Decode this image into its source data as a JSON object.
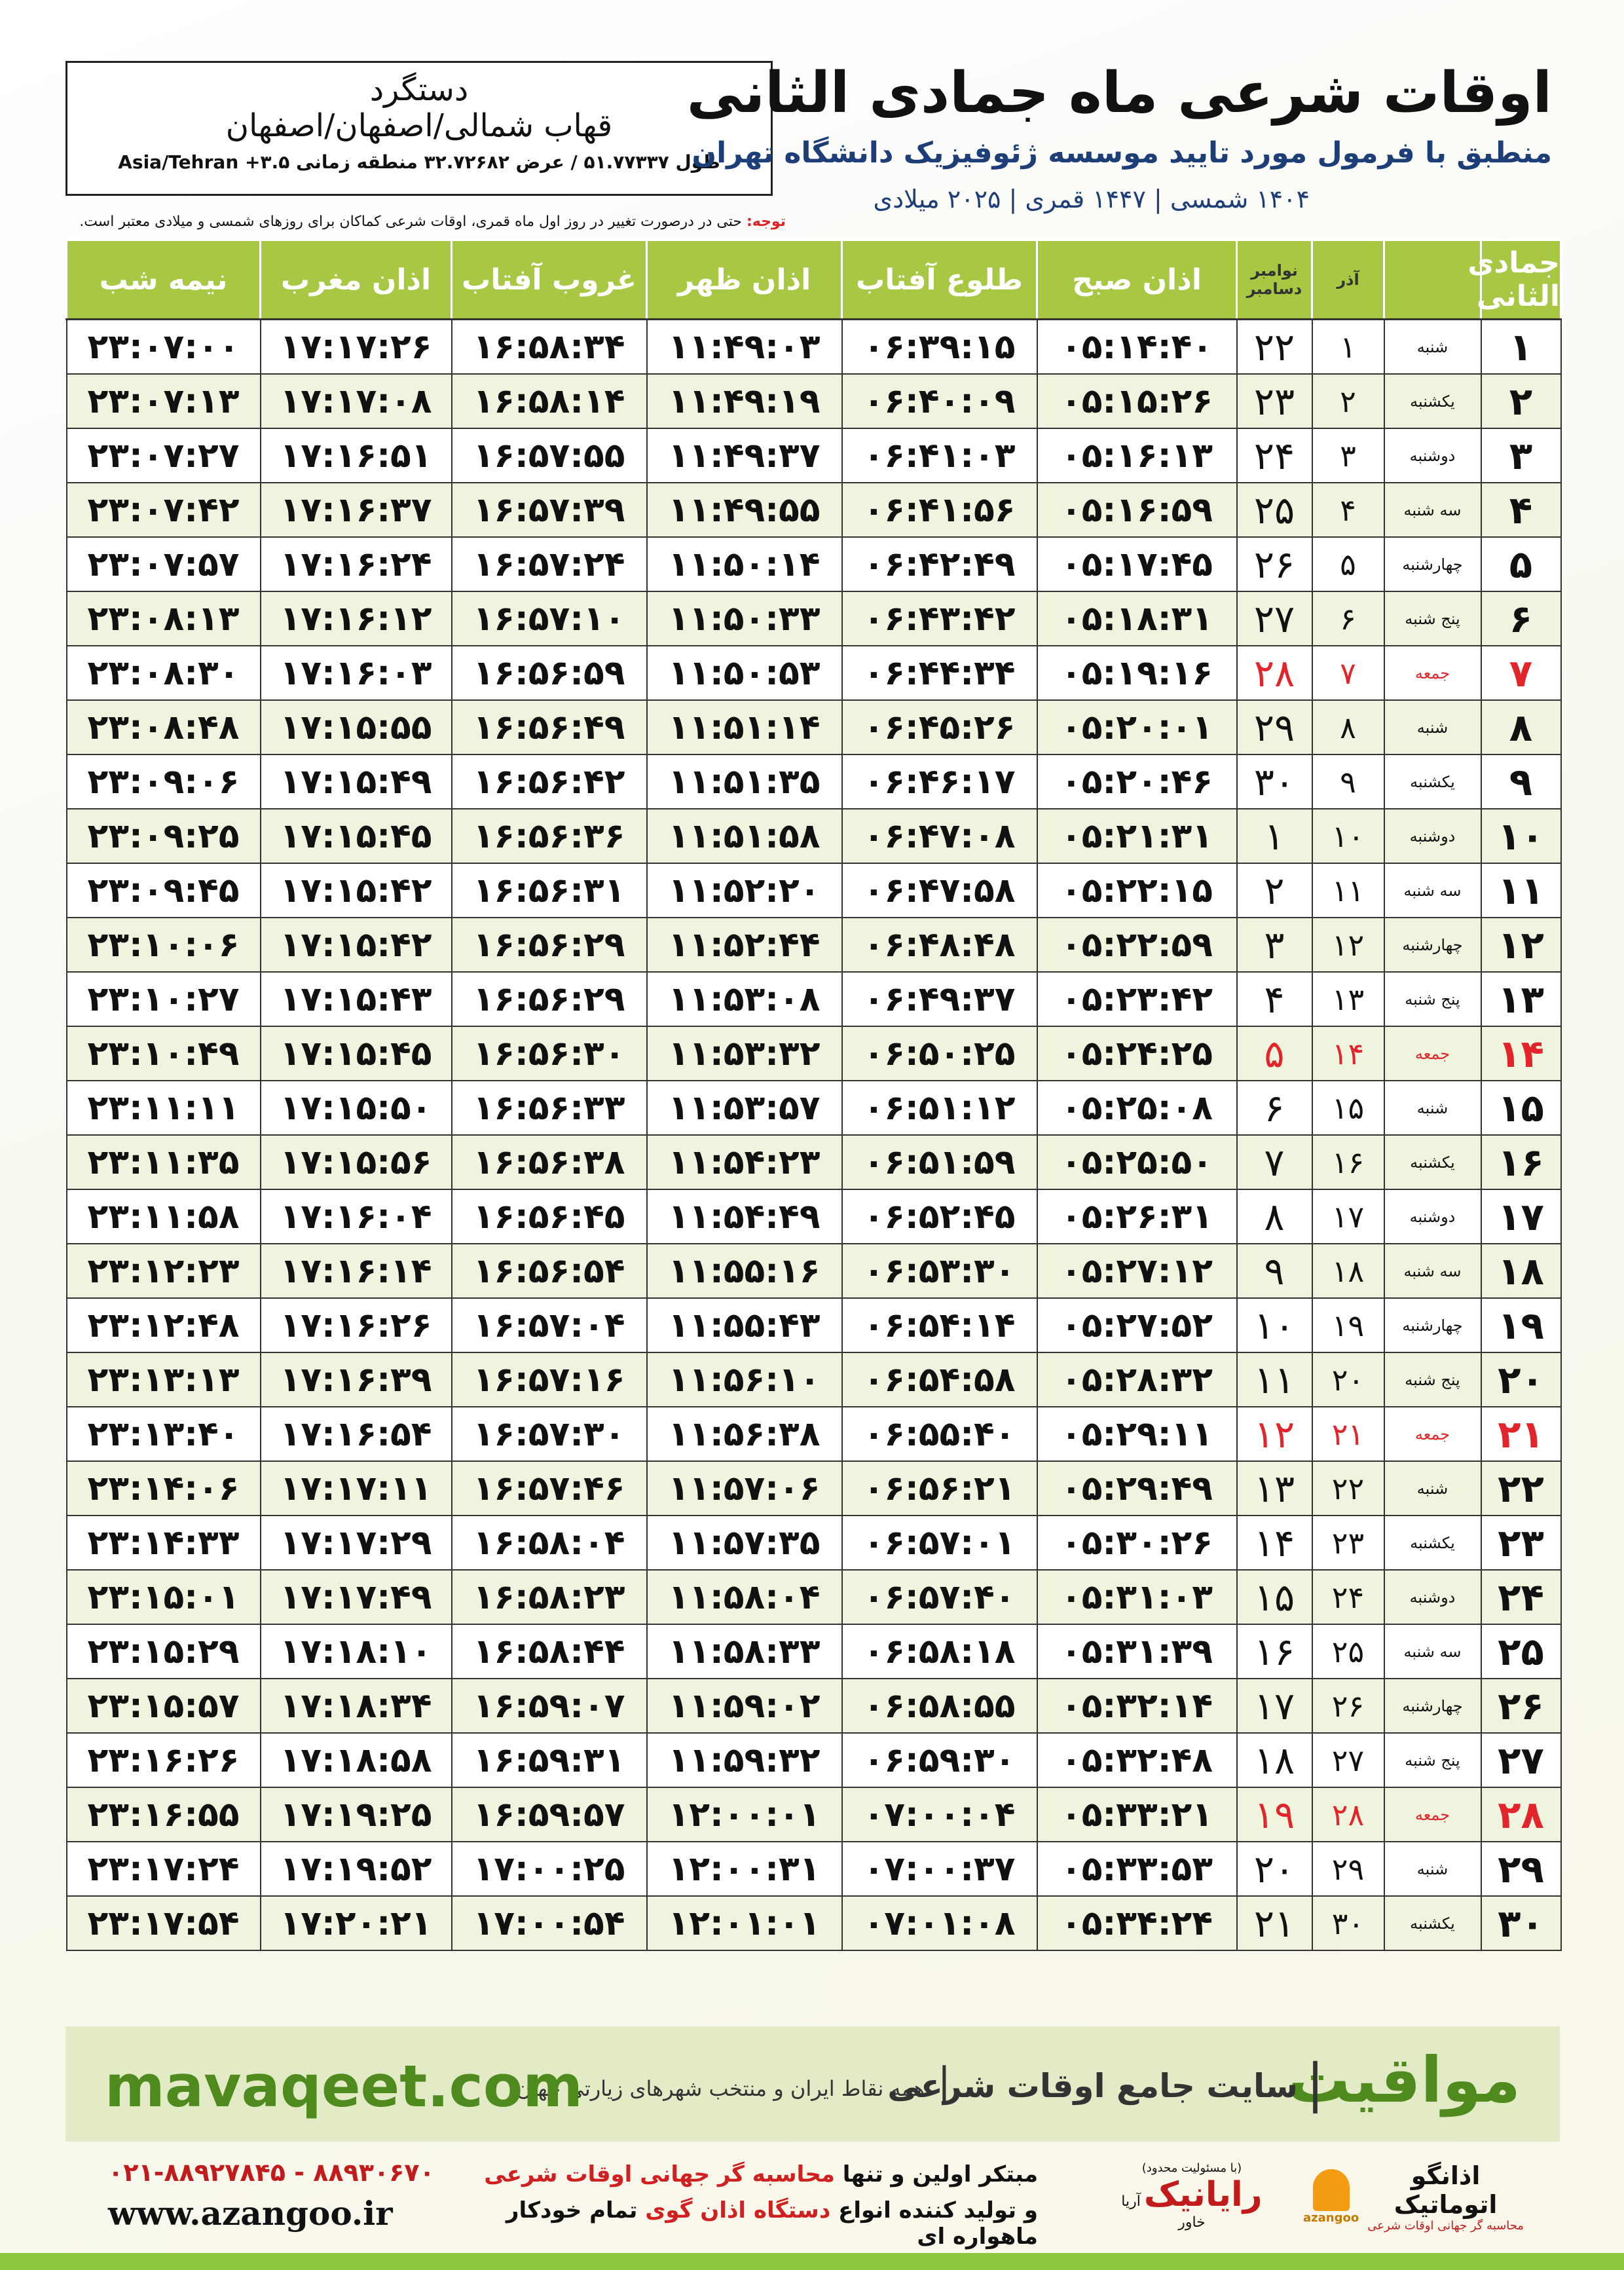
{
  "header": {
    "title": "اوقات شرعی ماه جمادی الثانی",
    "subtitle": "منطبق با فرمول مورد تایید موسسه ژئوفیزیک دانشگاه تهران",
    "dates": "۱۴۰۴ شمسی | ۱۴۴۷ قمری | ۲۰۲۵ میلادی"
  },
  "location": {
    "name": "دستگرد",
    "region": "قهاب شمالی/اصفهان/اصفهان",
    "coords": "طول ۵۱.۷۷۳۳۷ / عرض ۳۲.۷۲۶۸۲ منطقه زمانی ۳.۵+ Asia/Tehran"
  },
  "note": {
    "label": "توجه:",
    "text": "حتی در درصورت تغییر در روز اول ماه قمری، اوقات شرعی کماکان برای روزهای شمسی و میلادی معتبر است."
  },
  "table": {
    "holiday_color": "#e3242b",
    "columns": [
      "جمادی الثانی",
      "",
      "آذر",
      [
        "نوامبر",
        "دسامبر"
      ],
      "اذان صبح",
      "طلوع آفتاب",
      "اذان ظهر",
      "غروب آفتاب",
      "اذان مغرب",
      "نیمه شب"
    ],
    "rows": [
      {
        "cells": [
          "۱",
          "شنبه",
          "۱",
          "۲۲",
          "۰۵:۱۴:۴۰",
          "۰۶:۳۹:۱۵",
          "۱۱:۴۹:۰۳",
          "۱۶:۵۸:۳۴",
          "۱۷:۱۷:۲۶",
          "۲۳:۰۷:۰۰"
        ]
      },
      {
        "cells": [
          "۲",
          "یکشنبه",
          "۲",
          "۲۳",
          "۰۵:۱۵:۲۶",
          "۰۶:۴۰:۰۹",
          "۱۱:۴۹:۱۹",
          "۱۶:۵۸:۱۴",
          "۱۷:۱۷:۰۸",
          "۲۳:۰۷:۱۳"
        ]
      },
      {
        "cells": [
          "۳",
          "دوشنبه",
          "۳",
          "۲۴",
          "۰۵:۱۶:۱۳",
          "۰۶:۴۱:۰۳",
          "۱۱:۴۹:۳۷",
          "۱۶:۵۷:۵۵",
          "۱۷:۱۶:۵۱",
          "۲۳:۰۷:۲۷"
        ]
      },
      {
        "cells": [
          "۴",
          "سه شنبه",
          "۴",
          "۲۵",
          "۰۵:۱۶:۵۹",
          "۰۶:۴۱:۵۶",
          "۱۱:۴۹:۵۵",
          "۱۶:۵۷:۳۹",
          "۱۷:۱۶:۳۷",
          "۲۳:۰۷:۴۲"
        ]
      },
      {
        "cells": [
          "۵",
          "چهارشنبه",
          "۵",
          "۲۶",
          "۰۵:۱۷:۴۵",
          "۰۶:۴۲:۴۹",
          "۱۱:۵۰:۱۴",
          "۱۶:۵۷:۲۴",
          "۱۷:۱۶:۲۴",
          "۲۳:۰۷:۵۷"
        ]
      },
      {
        "cells": [
          "۶",
          "پنج شنبه",
          "۶",
          "۲۷",
          "۰۵:۱۸:۳۱",
          "۰۶:۴۳:۴۲",
          "۱۱:۵۰:۳۳",
          "۱۶:۵۷:۱۰",
          "۱۷:۱۶:۱۲",
          "۲۳:۰۸:۱۳"
        ]
      },
      {
        "cells": [
          "۷",
          "جمعه",
          "۷",
          "۲۸",
          "۰۵:۱۹:۱۶",
          "۰۶:۴۴:۳۴",
          "۱۱:۵۰:۵۳",
          "۱۶:۵۶:۵۹",
          "۱۷:۱۶:۰۳",
          "۲۳:۰۸:۳۰"
        ],
        "holiday": true
      },
      {
        "cells": [
          "۸",
          "شنبه",
          "۸",
          "۲۹",
          "۰۵:۲۰:۰۱",
          "۰۶:۴۵:۲۶",
          "۱۱:۵۱:۱۴",
          "۱۶:۵۶:۴۹",
          "۱۷:۱۵:۵۵",
          "۲۳:۰۸:۴۸"
        ]
      },
      {
        "cells": [
          "۹",
          "یکشنبه",
          "۹",
          "۳۰",
          "۰۵:۲۰:۴۶",
          "۰۶:۴۶:۱۷",
          "۱۱:۵۱:۳۵",
          "۱۶:۵۶:۴۲",
          "۱۷:۱۵:۴۹",
          "۲۳:۰۹:۰۶"
        ]
      },
      {
        "cells": [
          "۱۰",
          "دوشنبه",
          "۱۰",
          "۱",
          "۰۵:۲۱:۳۱",
          "۰۶:۴۷:۰۸",
          "۱۱:۵۱:۵۸",
          "۱۶:۵۶:۳۶",
          "۱۷:۱۵:۴۵",
          "۲۳:۰۹:۲۵"
        ]
      },
      {
        "cells": [
          "۱۱",
          "سه شنبه",
          "۱۱",
          "۲",
          "۰۵:۲۲:۱۵",
          "۰۶:۴۷:۵۸",
          "۱۱:۵۲:۲۰",
          "۱۶:۵۶:۳۱",
          "۱۷:۱۵:۴۲",
          "۲۳:۰۹:۴۵"
        ]
      },
      {
        "cells": [
          "۱۲",
          "چهارشنبه",
          "۱۲",
          "۳",
          "۰۵:۲۲:۵۹",
          "۰۶:۴۸:۴۸",
          "۱۱:۵۲:۴۴",
          "۱۶:۵۶:۲۹",
          "۱۷:۱۵:۴۲",
          "۲۳:۱۰:۰۶"
        ]
      },
      {
        "cells": [
          "۱۳",
          "پنج شنبه",
          "۱۳",
          "۴",
          "۰۵:۲۳:۴۲",
          "۰۶:۴۹:۳۷",
          "۱۱:۵۳:۰۸",
          "۱۶:۵۶:۲۹",
          "۱۷:۱۵:۴۳",
          "۲۳:۱۰:۲۷"
        ]
      },
      {
        "cells": [
          "۱۴",
          "جمعه",
          "۱۴",
          "۵",
          "۰۵:۲۴:۲۵",
          "۰۶:۵۰:۲۵",
          "۱۱:۵۳:۳۲",
          "۱۶:۵۶:۳۰",
          "۱۷:۱۵:۴۵",
          "۲۳:۱۰:۴۹"
        ],
        "holiday": true
      },
      {
        "cells": [
          "۱۵",
          "شنبه",
          "۱۵",
          "۶",
          "۰۵:۲۵:۰۸",
          "۰۶:۵۱:۱۲",
          "۱۱:۵۳:۵۷",
          "۱۶:۵۶:۳۳",
          "۱۷:۱۵:۵۰",
          "۲۳:۱۱:۱۱"
        ]
      },
      {
        "cells": [
          "۱۶",
          "یکشنبه",
          "۱۶",
          "۷",
          "۰۵:۲۵:۵۰",
          "۰۶:۵۱:۵۹",
          "۱۱:۵۴:۲۳",
          "۱۶:۵۶:۳۸",
          "۱۷:۱۵:۵۶",
          "۲۳:۱۱:۳۵"
        ]
      },
      {
        "cells": [
          "۱۷",
          "دوشنبه",
          "۱۷",
          "۸",
          "۰۵:۲۶:۳۱",
          "۰۶:۵۲:۴۵",
          "۱۱:۵۴:۴۹",
          "۱۶:۵۶:۴۵",
          "۱۷:۱۶:۰۴",
          "۲۳:۱۱:۵۸"
        ]
      },
      {
        "cells": [
          "۱۸",
          "سه شنبه",
          "۱۸",
          "۹",
          "۰۵:۲۷:۱۲",
          "۰۶:۵۳:۳۰",
          "۱۱:۵۵:۱۶",
          "۱۶:۵۶:۵۴",
          "۱۷:۱۶:۱۴",
          "۲۳:۱۲:۲۳"
        ]
      },
      {
        "cells": [
          "۱۹",
          "چهارشنبه",
          "۱۹",
          "۱۰",
          "۰۵:۲۷:۵۲",
          "۰۶:۵۴:۱۴",
          "۱۱:۵۵:۴۳",
          "۱۶:۵۷:۰۴",
          "۱۷:۱۶:۲۶",
          "۲۳:۱۲:۴۸"
        ]
      },
      {
        "cells": [
          "۲۰",
          "پنج شنبه",
          "۲۰",
          "۱۱",
          "۰۵:۲۸:۳۲",
          "۰۶:۵۴:۵۸",
          "۱۱:۵۶:۱۰",
          "۱۶:۵۷:۱۶",
          "۱۷:۱۶:۳۹",
          "۲۳:۱۳:۱۳"
        ]
      },
      {
        "cells": [
          "۲۱",
          "جمعه",
          "۲۱",
          "۱۲",
          "۰۵:۲۹:۱۱",
          "۰۶:۵۵:۴۰",
          "۱۱:۵۶:۳۸",
          "۱۶:۵۷:۳۰",
          "۱۷:۱۶:۵۴",
          "۲۳:۱۳:۴۰"
        ],
        "holiday": true
      },
      {
        "cells": [
          "۲۲",
          "شنبه",
          "۲۲",
          "۱۳",
          "۰۵:۲۹:۴۹",
          "۰۶:۵۶:۲۱",
          "۱۱:۵۷:۰۶",
          "۱۶:۵۷:۴۶",
          "۱۷:۱۷:۱۱",
          "۲۳:۱۴:۰۶"
        ]
      },
      {
        "cells": [
          "۲۳",
          "یکشنبه",
          "۲۳",
          "۱۴",
          "۰۵:۳۰:۲۶",
          "۰۶:۵۷:۰۱",
          "۱۱:۵۷:۳۵",
          "۱۶:۵۸:۰۴",
          "۱۷:۱۷:۲۹",
          "۲۳:۱۴:۳۳"
        ]
      },
      {
        "cells": [
          "۲۴",
          "دوشنبه",
          "۲۴",
          "۱۵",
          "۰۵:۳۱:۰۳",
          "۰۶:۵۷:۴۰",
          "۱۱:۵۸:۰۴",
          "۱۶:۵۸:۲۳",
          "۱۷:۱۷:۴۹",
          "۲۳:۱۵:۰۱"
        ]
      },
      {
        "cells": [
          "۲۵",
          "سه شنبه",
          "۲۵",
          "۱۶",
          "۰۵:۳۱:۳۹",
          "۰۶:۵۸:۱۸",
          "۱۱:۵۸:۳۳",
          "۱۶:۵۸:۴۴",
          "۱۷:۱۸:۱۰",
          "۲۳:۱۵:۲۹"
        ]
      },
      {
        "cells": [
          "۲۶",
          "چهارشنبه",
          "۲۶",
          "۱۷",
          "۰۵:۳۲:۱۴",
          "۰۶:۵۸:۵۵",
          "۱۱:۵۹:۰۲",
          "۱۶:۵۹:۰۷",
          "۱۷:۱۸:۳۴",
          "۲۳:۱۵:۵۷"
        ]
      },
      {
        "cells": [
          "۲۷",
          "پنج شنبه",
          "۲۷",
          "۱۸",
          "۰۵:۳۲:۴۸",
          "۰۶:۵۹:۳۰",
          "۱۱:۵۹:۳۲",
          "۱۶:۵۹:۳۱",
          "۱۷:۱۸:۵۸",
          "۲۳:۱۶:۲۶"
        ]
      },
      {
        "cells": [
          "۲۸",
          "جمعه",
          "۲۸",
          "۱۹",
          "۰۵:۳۳:۲۱",
          "۰۷:۰۰:۰۴",
          "۱۲:۰۰:۰۱",
          "۱۶:۵۹:۵۷",
          "۱۷:۱۹:۲۵",
          "۲۳:۱۶:۵۵"
        ],
        "holiday": true
      },
      {
        "cells": [
          "۲۹",
          "شنبه",
          "۲۹",
          "۲۰",
          "۰۵:۳۳:۵۳",
          "۰۷:۰۰:۳۷",
          "۱۲:۰۰:۳۱",
          "۱۷:۰۰:۲۵",
          "۱۷:۱۹:۵۲",
          "۲۳:۱۷:۲۴"
        ]
      },
      {
        "cells": [
          "۳۰",
          "یکشنبه",
          "۳۰",
          "۲۱",
          "۰۵:۳۴:۲۴",
          "۰۷:۰۱:۰۸",
          "۱۲:۰۱:۰۱",
          "۱۷:۰۰:۵۴",
          "۱۷:۲۰:۲۱",
          "۲۳:۱۷:۵۴"
        ]
      }
    ]
  },
  "banner": {
    "brand": "مواقیت",
    "slogan": "سایت جامع اوقات شرعی",
    "coverage": "همه نقاط ایران و منتخب شهرهای زیارتی جهان",
    "url": "mavaqeet.com"
  },
  "footer": {
    "phone": "۰۲۱-۸۸۹۲۷۸۴۵ - ۸۸۹۳۰۶۷۰",
    "site": "www.azangoo.ir",
    "line1": [
      "مبتکر اولین و تنها ",
      "محاسبه گر جهانی اوقات شرعی"
    ],
    "line2": [
      "و تولید کننده انواع ",
      "دستگاه اذان گوی",
      " تمام خودکار ماهواره ای"
    ],
    "raianik": "رایانیک",
    "raianik_sub": "آریا خاور",
    "raianik_note": "(با مسئولیت محدود)",
    "azangoo": "اذانگو اتوماتیک",
    "azangoo_sub": "محاسبه گر جهانی اوقات شرعی",
    "azangoo_latin": "azangoo"
  }
}
